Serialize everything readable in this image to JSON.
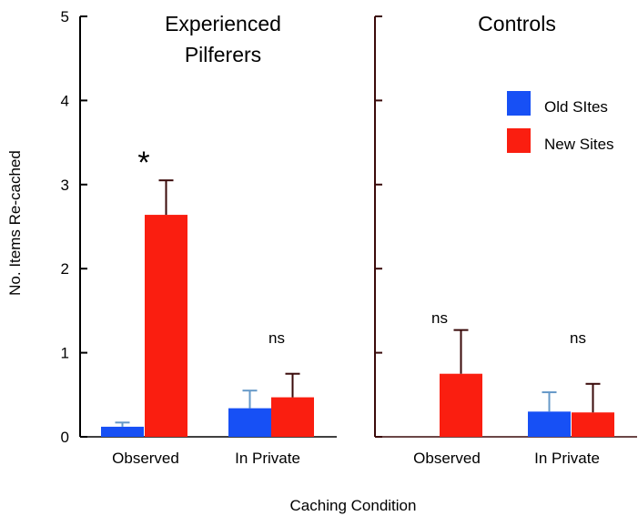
{
  "chart_data": [
    {
      "type": "bar",
      "title": "Experienced Pilferers",
      "title_lines": [
        "Experienced",
        "Pilferers"
      ],
      "categories": [
        "Observed",
        "In Private"
      ],
      "ylabel": "No. Items Re-cached",
      "xlabel": "Caching Condition",
      "ylim": [
        0,
        5
      ],
      "yticks": [
        0,
        1,
        2,
        3,
        4,
        5
      ],
      "series": [
        {
          "name": "Old SItes",
          "values": [
            0.12,
            0.34
          ],
          "errors": [
            0.05,
            0.21
          ]
        },
        {
          "name": "New Sites",
          "values": [
            2.64,
            0.47
          ],
          "errors": [
            0.41,
            0.28
          ]
        }
      ],
      "annotations": [
        {
          "category": "Observed",
          "text": "*"
        },
        {
          "category": "In Private",
          "text": "ns"
        }
      ]
    },
    {
      "type": "bar",
      "title": "Controls",
      "title_lines": [
        "Controls"
      ],
      "categories": [
        "Observed",
        "In Private"
      ],
      "ylim": [
        0,
        5
      ],
      "series": [
        {
          "name": "Old SItes",
          "values": [
            0,
            0.3
          ],
          "errors": [
            0,
            0.23
          ]
        },
        {
          "name": "New Sites",
          "values": [
            0.75,
            0.29
          ],
          "errors": [
            0.52,
            0.34
          ]
        }
      ],
      "annotations": [
        {
          "category": "Observed",
          "text": "ns"
        },
        {
          "category": "In Private",
          "text": "ns"
        }
      ]
    }
  ],
  "legend": {
    "placement": "right panel, top-right",
    "items": [
      {
        "label": "Old SItes",
        "color": "#1750f5"
      },
      {
        "label": "New Sites",
        "color": "#fa1e10"
      }
    ]
  },
  "colors": {
    "old_sites": "#1750f5",
    "new_sites": "#fa1e10",
    "old_sites_error": "#6699c8",
    "new_sites_error": "#3a0a0a",
    "axis_left": "#000000",
    "axis_right": "#3a0a0a"
  }
}
